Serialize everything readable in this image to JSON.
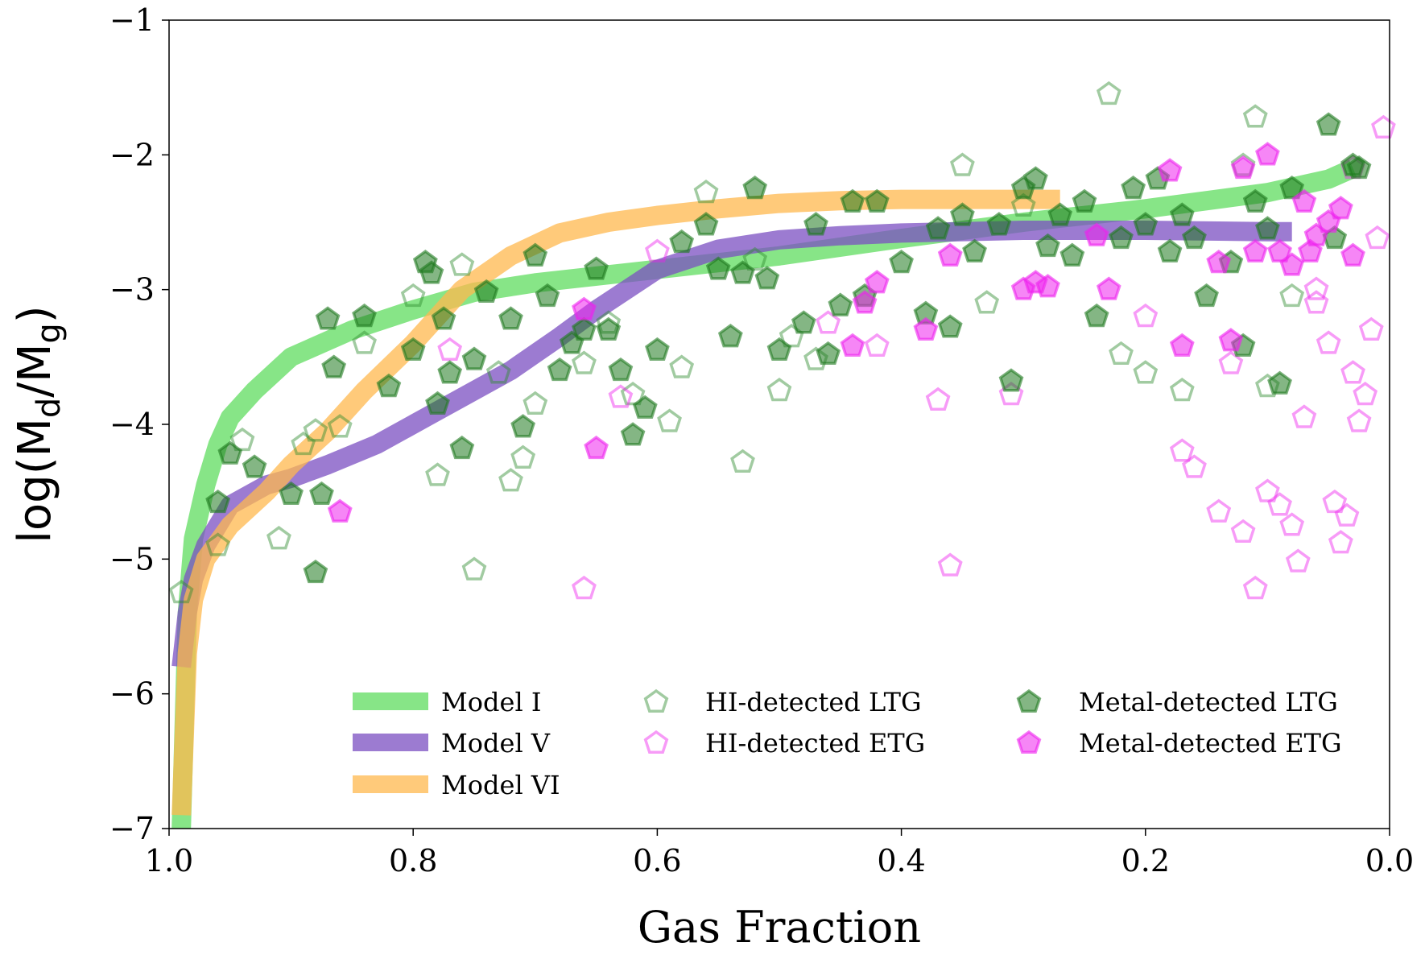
{
  "chart_data": {
    "type": "scatter",
    "title": "",
    "xlabel": "Gas Fraction",
    "ylabel": {
      "main": "log(M",
      "sub1": "d",
      "mid": "/M",
      "sub2": "g",
      "end": ")"
    },
    "xlim": [
      1.0,
      0.0
    ],
    "ylim": [
      -7,
      -1
    ],
    "x_reversed": true,
    "grid": false,
    "legend_placement": "lower-right",
    "x_ticks": [
      "1.0",
      "0.8",
      "0.6",
      "0.4",
      "0.2",
      "0.0"
    ],
    "x_tick_values": [
      1.0,
      0.8,
      0.6,
      0.4,
      0.2,
      0.0
    ],
    "y_ticks": [
      "−7",
      "−6",
      "−5",
      "−4",
      "−3",
      "−2",
      "−1"
    ],
    "y_tick_values": [
      -7,
      -6,
      -5,
      -4,
      -3,
      -2,
      -1
    ],
    "colors": {
      "model_1": "#5fdc5f",
      "model_5": "#7b4fc2",
      "model_6": "#ffb84d",
      "ltg": "#2e8b2e",
      "ltg_fill": "#1f7a1f",
      "etg": "#ee22ee"
    },
    "legend": {
      "model_1": "Model I",
      "model_5": "Model V",
      "model_6": "Model VI",
      "hi_ltg": "HI-detected LTG",
      "hi_etg": "HI-detected ETG",
      "metal_ltg": "Metal-detected LTG",
      "metal_etg": "Metal-detected ETG"
    },
    "series": [
      {
        "name": "Model I",
        "kind": "line",
        "color": "#5fdc5f",
        "x": [
          0.99,
          0.985,
          0.98,
          0.97,
          0.96,
          0.95,
          0.93,
          0.9,
          0.85,
          0.8,
          0.75,
          0.7,
          0.6,
          0.5,
          0.4,
          0.3,
          0.2,
          0.1,
          0.05,
          0.03
        ],
        "y": [
          -7.0,
          -5.4,
          -4.85,
          -4.45,
          -4.15,
          -3.95,
          -3.75,
          -3.5,
          -3.3,
          -3.15,
          -3.02,
          -2.95,
          -2.85,
          -2.75,
          -2.62,
          -2.5,
          -2.4,
          -2.28,
          -2.18,
          -2.1
        ]
      },
      {
        "name": "Model V",
        "kind": "line",
        "color": "#7b4fc2",
        "x": [
          0.99,
          0.985,
          0.98,
          0.97,
          0.95,
          0.92,
          0.9,
          0.87,
          0.83,
          0.78,
          0.72,
          0.68,
          0.65,
          0.6,
          0.55,
          0.5,
          0.45,
          0.4,
          0.3,
          0.2,
          0.1,
          0.08
        ],
        "y": [
          -5.8,
          -5.4,
          -5.15,
          -4.9,
          -4.6,
          -4.45,
          -4.4,
          -4.3,
          -4.15,
          -3.9,
          -3.6,
          -3.35,
          -3.15,
          -2.85,
          -2.7,
          -2.63,
          -2.6,
          -2.58,
          -2.56,
          -2.56,
          -2.57,
          -2.57
        ]
      },
      {
        "name": "Model VI",
        "kind": "line",
        "color": "#ffb84d",
        "x": [
          0.99,
          0.985,
          0.98,
          0.97,
          0.95,
          0.92,
          0.9,
          0.87,
          0.84,
          0.8,
          0.76,
          0.72,
          0.68,
          0.64,
          0.6,
          0.55,
          0.5,
          0.45,
          0.4,
          0.35,
          0.3,
          0.27
        ],
        "y": [
          -6.9,
          -5.7,
          -5.3,
          -5.0,
          -4.75,
          -4.5,
          -4.3,
          -4.05,
          -3.75,
          -3.4,
          -3.0,
          -2.75,
          -2.58,
          -2.5,
          -2.45,
          -2.4,
          -2.36,
          -2.34,
          -2.33,
          -2.33,
          -2.33,
          -2.33
        ]
      },
      {
        "name": "HI-detected LTG",
        "kind": "scatter",
        "marker": "pentagon-open",
        "color": "#2e8b2e",
        "x": [
          0.99,
          0.96,
          0.94,
          0.91,
          0.89,
          0.88,
          0.86,
          0.84,
          0.8,
          0.78,
          0.76,
          0.75,
          0.73,
          0.72,
          0.71,
          0.7,
          0.66,
          0.64,
          0.62,
          0.59,
          0.58,
          0.56,
          0.53,
          0.52,
          0.5,
          0.49,
          0.47,
          0.35,
          0.33,
          0.3,
          0.23,
          0.22,
          0.2,
          0.17,
          0.12,
          0.11,
          0.1,
          0.08
        ],
        "y": [
          -5.25,
          -4.9,
          -4.12,
          -4.85,
          -4.15,
          -4.05,
          -4.02,
          -3.4,
          -3.05,
          -4.38,
          -2.82,
          -5.08,
          -3.62,
          -4.42,
          -4.25,
          -3.85,
          -3.55,
          -3.25,
          -3.78,
          -3.98,
          -3.58,
          -2.28,
          -4.28,
          -2.78,
          -3.75,
          -3.35,
          -3.52,
          -2.08,
          -3.1,
          -2.38,
          -1.55,
          -3.48,
          -3.62,
          -3.75,
          -2.08,
          -1.72,
          -3.72,
          -3.05
        ]
      },
      {
        "name": "HI-detected ETG",
        "kind": "scatter",
        "marker": "pentagon-open",
        "color": "#ee22ee",
        "x": [
          0.77,
          0.66,
          0.63,
          0.6,
          0.46,
          0.42,
          0.37,
          0.36,
          0.31,
          0.2,
          0.17,
          0.16,
          0.14,
          0.12,
          0.11,
          0.1,
          0.09,
          0.08,
          0.075,
          0.07,
          0.06,
          0.05,
          0.045,
          0.04,
          0.035,
          0.03,
          0.025,
          0.02,
          0.015,
          0.01,
          0.005,
          0.13,
          0.06,
          0.03
        ],
        "y": [
          -3.45,
          -5.22,
          -3.8,
          -2.72,
          -3.25,
          -3.42,
          -3.82,
          -5.05,
          -3.78,
          -3.2,
          -4.2,
          -4.32,
          -4.65,
          -4.8,
          -5.22,
          -4.5,
          -4.6,
          -4.75,
          -5.02,
          -3.95,
          -3.1,
          -3.4,
          -4.58,
          -4.88,
          -4.68,
          -3.62,
          -3.98,
          -3.78,
          -3.3,
          -2.62,
          -1.8,
          -3.55,
          -3.0,
          -2.1
        ]
      },
      {
        "name": "Metal-detected LTG",
        "kind": "scatter",
        "marker": "pentagon-filled",
        "color": "#1f7a1f",
        "x": [
          0.96,
          0.95,
          0.93,
          0.9,
          0.88,
          0.875,
          0.87,
          0.865,
          0.84,
          0.82,
          0.8,
          0.79,
          0.785,
          0.78,
          0.775,
          0.77,
          0.76,
          0.75,
          0.74,
          0.72,
          0.71,
          0.7,
          0.69,
          0.68,
          0.67,
          0.66,
          0.65,
          0.64,
          0.63,
          0.62,
          0.61,
          0.6,
          0.58,
          0.56,
          0.55,
          0.54,
          0.53,
          0.52,
          0.51,
          0.5,
          0.48,
          0.47,
          0.46,
          0.45,
          0.44,
          0.43,
          0.42,
          0.4,
          0.38,
          0.37,
          0.36,
          0.35,
          0.34,
          0.32,
          0.31,
          0.3,
          0.29,
          0.28,
          0.27,
          0.26,
          0.25,
          0.24,
          0.22,
          0.21,
          0.2,
          0.19,
          0.18,
          0.17,
          0.16,
          0.15,
          0.13,
          0.12,
          0.11,
          0.1,
          0.09,
          0.08,
          0.05,
          0.045,
          0.03,
          0.025
        ],
        "y": [
          -4.58,
          -4.22,
          -4.32,
          -4.52,
          -5.1,
          -4.52,
          -3.22,
          -3.58,
          -3.2,
          -3.72,
          -3.45,
          -2.8,
          -2.88,
          -3.85,
          -3.22,
          -3.62,
          -4.18,
          -3.52,
          -3.02,
          -3.22,
          -4.02,
          -2.75,
          -3.05,
          -3.6,
          -3.4,
          -3.3,
          -2.85,
          -3.3,
          -3.6,
          -4.08,
          -3.88,
          -3.45,
          -2.65,
          -2.52,
          -2.85,
          -3.35,
          -2.88,
          -2.25,
          -2.92,
          -3.45,
          -3.25,
          -2.52,
          -3.48,
          -3.12,
          -2.35,
          -3.05,
          -2.35,
          -2.8,
          -3.18,
          -2.55,
          -3.28,
          -2.45,
          -2.72,
          -2.52,
          -3.68,
          -2.25,
          -2.18,
          -2.68,
          -2.45,
          -2.75,
          -2.35,
          -3.2,
          -2.62,
          -2.25,
          -2.52,
          -2.18,
          -2.72,
          -2.45,
          -2.62,
          -3.05,
          -2.8,
          -3.42,
          -2.35,
          -2.55,
          -3.7,
          -2.25,
          -1.78,
          -2.62,
          -2.08,
          -2.1
        ]
      },
      {
        "name": "Metal-detected ETG",
        "kind": "scatter",
        "marker": "pentagon-filled",
        "color": "#ee22ee",
        "x": [
          0.86,
          0.65,
          0.66,
          0.44,
          0.43,
          0.42,
          0.38,
          0.36,
          0.3,
          0.29,
          0.28,
          0.24,
          0.23,
          0.18,
          0.17,
          0.14,
          0.13,
          0.12,
          0.11,
          0.1,
          0.09,
          0.08,
          0.07,
          0.065,
          0.06,
          0.05,
          0.04,
          0.03
        ],
        "y": [
          -4.65,
          -4.18,
          -3.15,
          -3.42,
          -3.1,
          -2.95,
          -3.3,
          -2.75,
          -3.0,
          -2.95,
          -2.98,
          -2.6,
          -3.0,
          -2.12,
          -3.42,
          -2.8,
          -3.38,
          -2.1,
          -2.72,
          -2.0,
          -2.72,
          -2.82,
          -2.35,
          -2.72,
          -2.6,
          -2.5,
          -2.4,
          -2.75
        ]
      }
    ]
  }
}
